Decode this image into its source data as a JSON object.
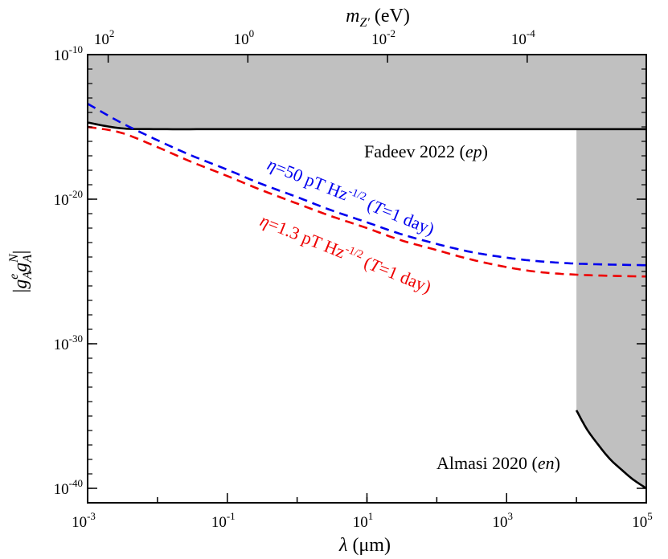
{
  "chart_data": {
    "type": "line",
    "title": "",
    "xscale": "log",
    "yscale": "log",
    "xlabel": {
      "symbol": "λ",
      "unit": " (μm)"
    },
    "x2label": {
      "symbol": "m",
      "sub": "Z′",
      "unit": " (eV)"
    },
    "ylabel": "|gAe gAN|",
    "xlim": [
      0.001,
      100000
    ],
    "ylim": [
      1e-41,
      1e-10
    ],
    "x_ticks": [
      {
        "value": 0.001,
        "base": "10",
        "exp": "-3"
      },
      {
        "value": 0.1,
        "base": "10",
        "exp": "-1"
      },
      {
        "value": 10,
        "base": "10",
        "exp": "1"
      },
      {
        "value": 1000,
        "base": "10",
        "exp": "3"
      },
      {
        "value": 100000,
        "base": "10",
        "exp": "5"
      }
    ],
    "x2_ticks": [
      {
        "lambda": 0.00197,
        "base": "10",
        "exp": "2"
      },
      {
        "lambda": 0.197,
        "base": "10",
        "exp": "0"
      },
      {
        "lambda": 19.7,
        "base": "10",
        "exp": "-2"
      },
      {
        "lambda": 1970,
        "base": "10",
        "exp": "-4"
      }
    ],
    "y_ticks": [
      {
        "value": 1e-10,
        "base": "10",
        "exp": "-10"
      },
      {
        "value": 1e-20,
        "base": "10",
        "exp": "-20"
      },
      {
        "value": 1e-30,
        "base": "10",
        "exp": "-30"
      },
      {
        "value": 1e-40,
        "base": "10",
        "exp": "-40"
      }
    ],
    "excluded_regions": [
      {
        "name": "Fadeev 2022",
        "color": "#c0c0c0"
      },
      {
        "name": "Almasi 2020",
        "color": "#c0c0c0"
      }
    ],
    "series": [
      {
        "name": "Fadeev 2022",
        "color": "#000000",
        "dash": false,
        "x": [
          0.001,
          0.003,
          0.01,
          0.1,
          1,
          10,
          100,
          1000,
          10000,
          100000
        ],
        "y": [
          2e-15,
          8e-16,
          7e-16,
          7e-16,
          7e-16,
          7e-16,
          7e-16,
          7e-16,
          7e-16,
          7e-16
        ]
      },
      {
        "name": "Almasi 2020",
        "color": "#000000",
        "dash": false,
        "x": [
          10000,
          14000,
          20000,
          30000,
          45000,
          65000,
          100000
        ],
        "y": [
          2.5e-35,
          1.3e-36,
          1.2e-37,
          1.1e-38,
          1.8e-39,
          4e-40,
          1e-40
        ]
      },
      {
        "name": "η=50 pT Hz^-1/2 (T=1 day)",
        "color": "#0000ee",
        "dash": true,
        "x": [
          0.001,
          0.003,
          0.01,
          0.03,
          0.1,
          0.3,
          1,
          3,
          10,
          30,
          100,
          300,
          1000,
          3000,
          10000,
          30000,
          100000
        ],
        "y": [
          4e-14,
          2e-15,
          1.2e-16,
          1.1e-17,
          1.1e-18,
          1.2e-19,
          1.4e-20,
          1.8e-21,
          2.5e-22,
          4e-23,
          8e-24,
          2.3e-24,
          9e-25,
          5e-25,
          3.5e-25,
          3e-25,
          2.7e-25
        ]
      },
      {
        "name": "η=1.3 pT Hz^-1/2 (T=1 day)",
        "color": "#ee0000",
        "dash": true,
        "x": [
          0.001,
          0.003,
          0.01,
          0.03,
          0.1,
          0.3,
          1,
          3,
          10,
          30,
          100,
          300,
          1000,
          3000,
          10000,
          30000,
          100000
        ],
        "y": [
          1e-15,
          4e-16,
          4e-17,
          4e-18,
          4e-19,
          4.5e-20,
          5e-21,
          7e-22,
          1e-22,
          1.5e-23,
          3e-24,
          7e-25,
          2e-25,
          9e-26,
          6e-26,
          5e-26,
          4.5e-26
        ]
      }
    ],
    "annotations": [
      {
        "id": "fadeev",
        "text": "Fadeev 2022 (",
        "italic": "ep",
        "close": ")"
      },
      {
        "id": "almasi",
        "text": "Almasi 2020 (",
        "italic": "en",
        "close": ")"
      },
      {
        "id": "blue",
        "eta": "η",
        "pre": "=50 pT Hz",
        "sup": "-1/2",
        "mid": " (",
        "T": "T",
        "post": "=1 day)"
      },
      {
        "id": "red",
        "eta": "η",
        "pre": "=1.3 pT Hz",
        "sup": "-1/2",
        "mid": " (",
        "T": "T",
        "post": "=1 day)"
      }
    ]
  }
}
